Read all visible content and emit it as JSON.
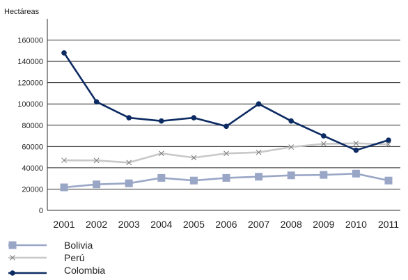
{
  "chart_data": {
    "type": "line",
    "ylabel": "Hectáreas",
    "xlabel": "",
    "title": "",
    "categories": [
      "2001",
      "2002",
      "2003",
      "2004",
      "2005",
      "2006",
      "2007",
      "2008",
      "2009",
      "2010",
      "2011"
    ],
    "yticks": [
      "0",
      "20000",
      "40000",
      "60000",
      "80000",
      "100000",
      "120000",
      "140000",
      "160000"
    ],
    "ylim": [
      0,
      180000
    ],
    "grid": true,
    "legend_position": "bottom-left",
    "series": [
      {
        "name": "Bolivia",
        "marker": "square",
        "color": "#99a6c6",
        "values": [
          21600,
          24400,
          25400,
          30500,
          28000,
          30500,
          31600,
          32900,
          33300,
          34500,
          28000
        ]
      },
      {
        "name": "Perú",
        "marker": "x",
        "color": "#c8c8c8",
        "values": [
          47000,
          46900,
          44900,
          53500,
          49500,
          53500,
          54500,
          59500,
          62500,
          63000,
          62000
        ]
      },
      {
        "name": "Colombia",
        "marker": "circle",
        "color": "#0d2b63",
        "values": [
          148000,
          102000,
          87000,
          84000,
          87000,
          79000,
          100000,
          84000,
          70000,
          56500,
          66000
        ]
      }
    ]
  }
}
